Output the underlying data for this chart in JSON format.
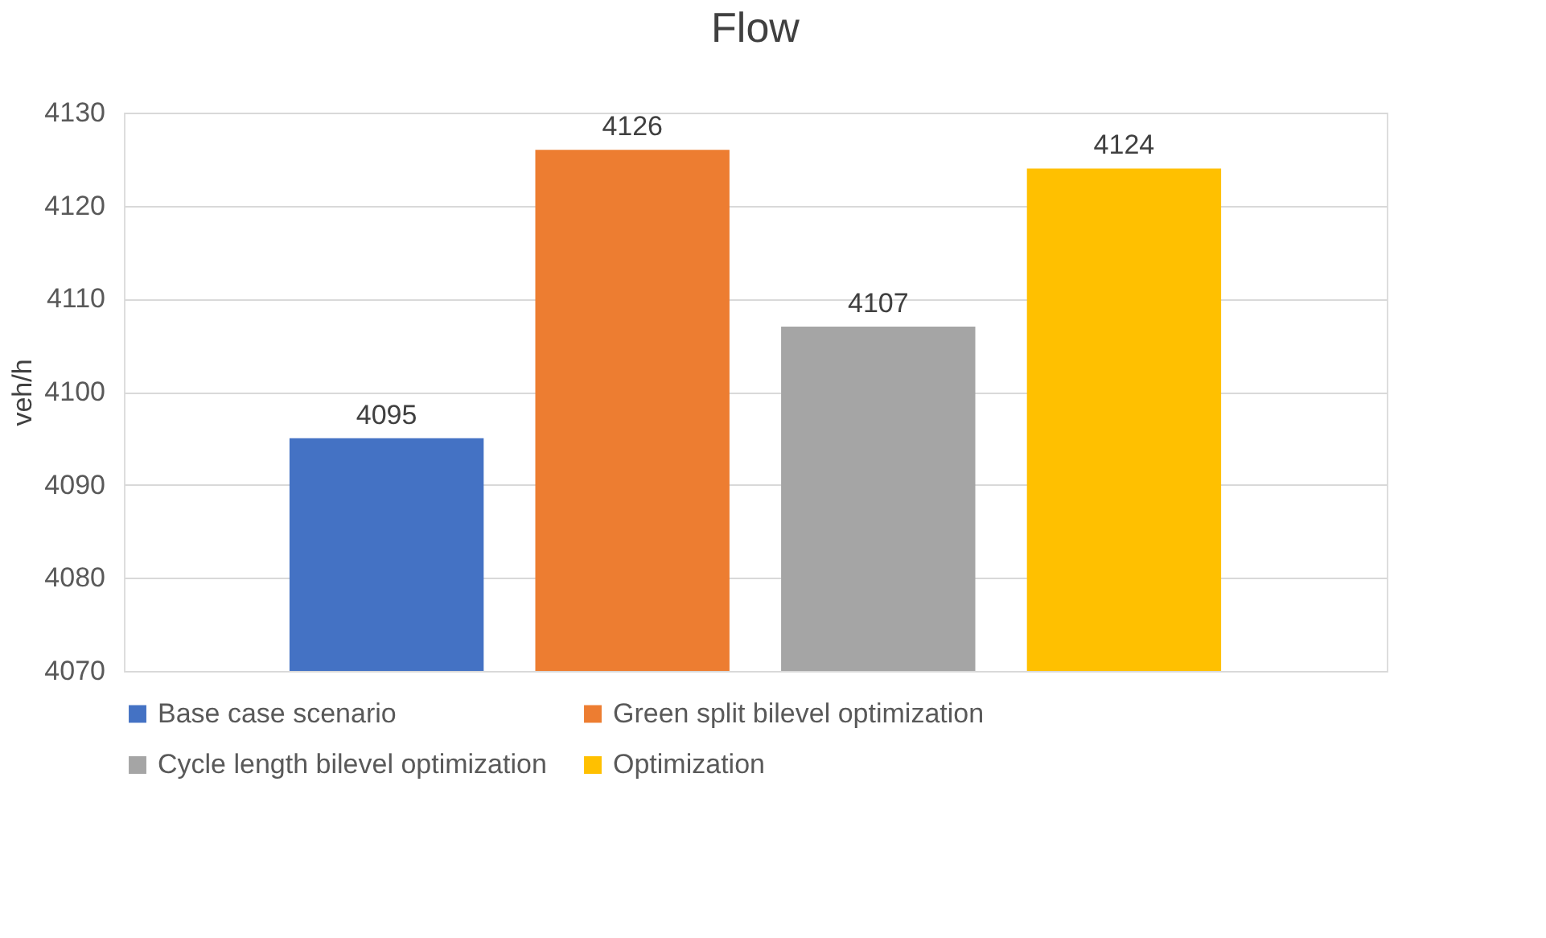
{
  "chart_data": {
    "type": "bar",
    "title": "Flow",
    "ylabel": "veh/h",
    "categories": [
      null
    ],
    "series": [
      {
        "name": "Base case scenario",
        "color": "#4472c4",
        "values": [
          4095
        ]
      },
      {
        "name": "Green split bilevel optimization",
        "color": "#ed7d31",
        "values": [
          4126
        ]
      },
      {
        "name": "Cycle length bilevel optimization",
        "color": "#a5a5a5",
        "values": [
          4107
        ]
      },
      {
        "name": "Optimization",
        "color": "#ffc000",
        "values": [
          4124
        ]
      }
    ],
    "ylim": [
      4070,
      4130
    ],
    "yticks": [
      4070,
      4080,
      4090,
      4100,
      4110,
      4120,
      4130
    ],
    "grid": "y",
    "legend": "bottom",
    "data_labels": true,
    "tick_labels": "y"
  }
}
